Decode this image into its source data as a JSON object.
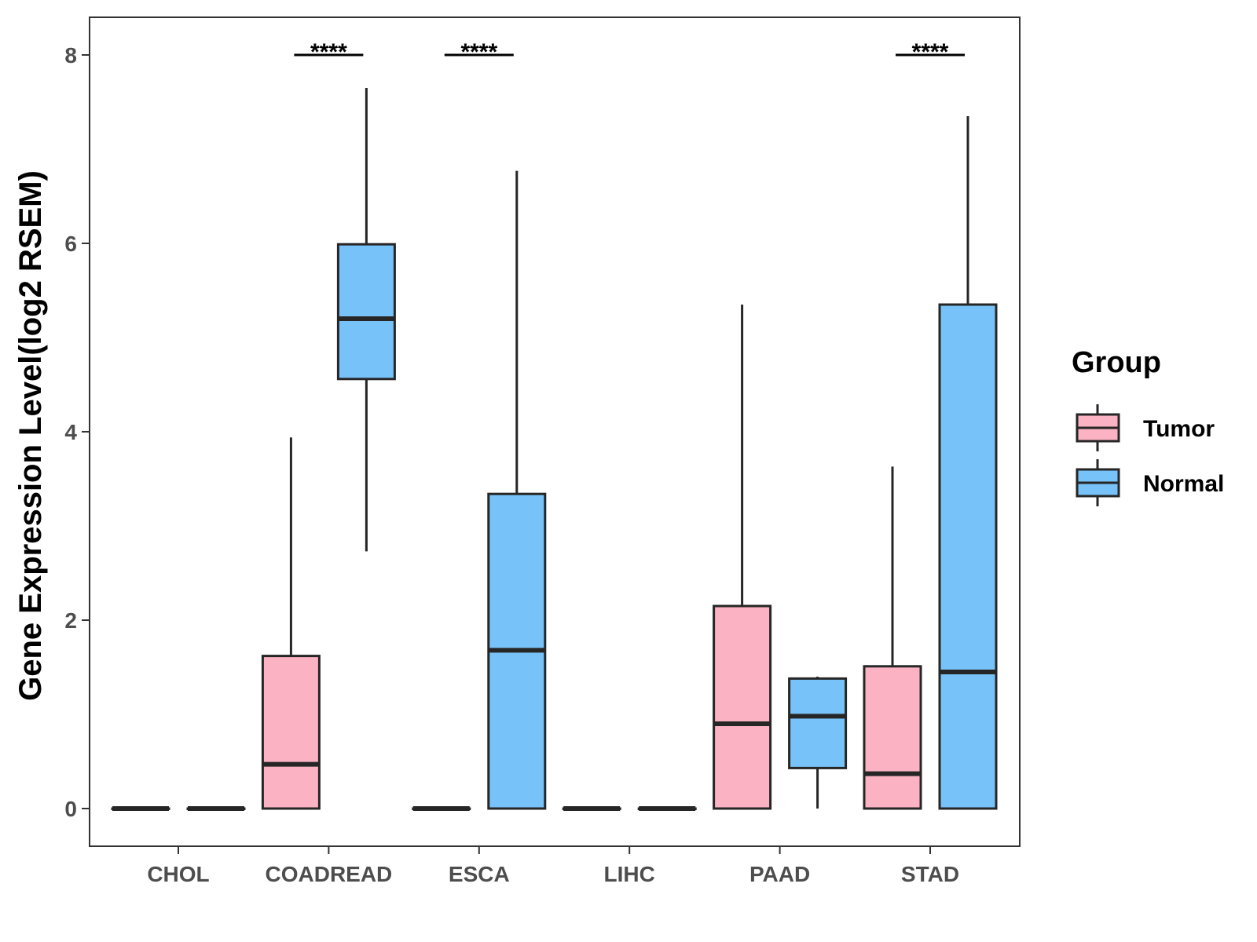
{
  "colors": {
    "tumor": "#fbb2c2",
    "normal": "#77c2f8",
    "stroke": "#262626",
    "axis": "#333333"
  },
  "chart_data": {
    "type": "boxplot",
    "ylabel": "Gene Expression Level(log2 RSEM)",
    "xlabel": "",
    "ylim": [
      -0.4,
      8.4
    ],
    "yticks": [
      0,
      2,
      4,
      6,
      8
    ],
    "ytick_labels": [
      "0",
      "2",
      "4",
      "6",
      "8"
    ],
    "categories": [
      "CHOL",
      "COADREAD",
      "ESCA",
      "LIHC",
      "PAAD",
      "STAD"
    ],
    "legend": {
      "title": "Group",
      "position": "right",
      "entries": [
        "Tumor",
        "Normal"
      ]
    },
    "series": [
      {
        "name": "Tumor",
        "boxes": [
          {
            "category": "CHOL",
            "min": 0,
            "q1": 0,
            "median": 0,
            "q3": 0,
            "max": 0
          },
          {
            "category": "COADREAD",
            "min": 0,
            "q1": 0,
            "median": 0.47,
            "q3": 1.62,
            "max": 3.94
          },
          {
            "category": "ESCA",
            "min": 0,
            "q1": 0,
            "median": 0,
            "q3": 0,
            "max": 0
          },
          {
            "category": "LIHC",
            "min": 0,
            "q1": 0,
            "median": 0,
            "q3": 0,
            "max": 0
          },
          {
            "category": "PAAD",
            "min": 0,
            "q1": 0,
            "median": 0.9,
            "q3": 2.15,
            "max": 5.35
          },
          {
            "category": "STAD",
            "min": 0,
            "q1": 0,
            "median": 0.37,
            "q3": 1.51,
            "max": 3.63
          }
        ]
      },
      {
        "name": "Normal",
        "boxes": [
          {
            "category": "CHOL",
            "min": 0,
            "q1": 0,
            "median": 0,
            "q3": 0,
            "max": 0
          },
          {
            "category": "COADREAD",
            "min": 2.73,
            "q1": 4.56,
            "median": 5.2,
            "q3": 5.99,
            "max": 7.65
          },
          {
            "category": "ESCA",
            "min": 0,
            "q1": 0,
            "median": 1.68,
            "q3": 3.34,
            "max": 6.77
          },
          {
            "category": "LIHC",
            "min": 0,
            "q1": 0,
            "median": 0,
            "q3": 0,
            "max": 0
          },
          {
            "category": "PAAD",
            "min": 0,
            "q1": 0.43,
            "median": 0.98,
            "q3": 1.38,
            "max": 1.4
          },
          {
            "category": "STAD",
            "min": 0,
            "q1": 0,
            "median": 1.45,
            "q3": 5.35,
            "max": 7.35
          }
        ]
      }
    ],
    "annotations": [
      {
        "category": "COADREAD",
        "label": "****",
        "y": 8
      },
      {
        "category": "ESCA",
        "label": "****",
        "y": 8
      },
      {
        "category": "STAD",
        "label": "****",
        "y": 8
      }
    ]
  }
}
